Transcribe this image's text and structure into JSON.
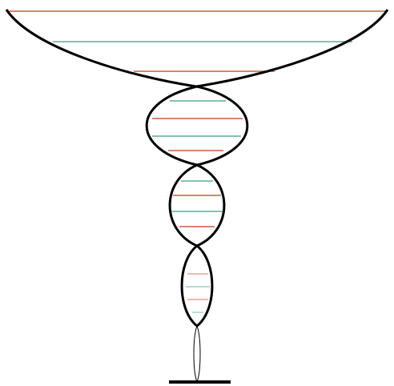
{
  "colors": {
    "background": "#ffffff",
    "outline": "#000000",
    "rung_red": "#cf5a3e",
    "rung_teal": "#5fae96"
  },
  "rung_pattern": [
    "red",
    "teal",
    "red",
    "teal",
    "red",
    "teal",
    "red",
    "teal",
    "red",
    "teal",
    "red",
    "teal",
    "red",
    "teal",
    "red"
  ]
}
